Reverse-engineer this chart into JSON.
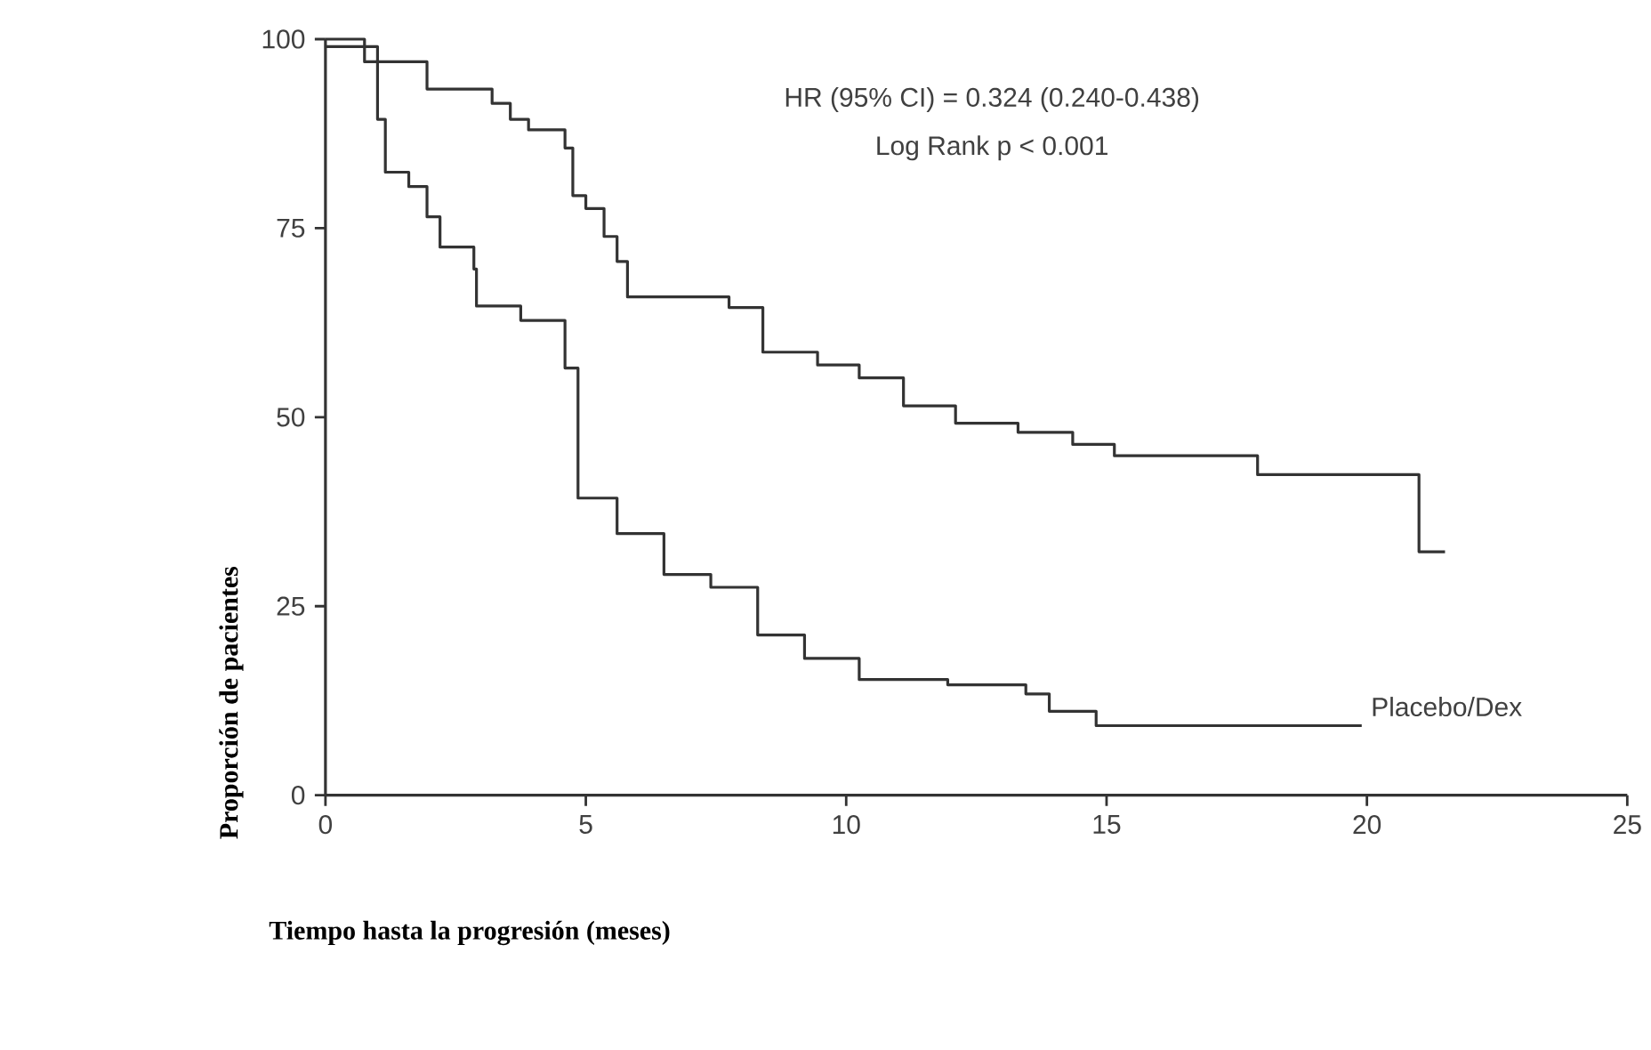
{
  "chart_data": {
    "type": "step",
    "xlabel": "Tiempo hasta la progresión (meses)",
    "ylabel": "Proporción de pacientes",
    "annotations": [
      "HR (95% CI) = 0.324 (0.240-0.438)",
      "Log Rank p < 0.001"
    ],
    "xlim": [
      0,
      25
    ],
    "ylim": [
      0,
      100
    ],
    "xticks": [
      0,
      5,
      10,
      15,
      20,
      25
    ],
    "yticks": [
      0,
      25,
      50,
      75,
      100
    ],
    "marker": "none",
    "line_style": "solid",
    "series": [
      {
        "color": "#333333",
        "x": [
          0,
          0.75,
          1.95,
          3.2,
          3.55,
          3.9,
          4.6,
          4.75,
          5.0,
          5.35,
          5.6,
          5.8,
          7.75,
          8.4,
          9.45,
          10.25,
          11.1,
          12.1,
          13.3,
          14.35,
          15.15,
          17.9,
          21.0,
          21.5
        ],
        "values": [
          100,
          97,
          93.4,
          91.5,
          89.4,
          88,
          85.6,
          79.3,
          77.6,
          73.9,
          70.6,
          65.9,
          64.5,
          58.6,
          56.9,
          55.2,
          51.5,
          49.2,
          48,
          46.4,
          44.9,
          42.4,
          32.2,
          32.2
        ]
      },
      {
        "name": "Placebo/Dex",
        "color": "#333333",
        "x": [
          0,
          1.0,
          1.15,
          1.6,
          1.95,
          2.2,
          2.85,
          2.9,
          3.75,
          4.6,
          4.85,
          5.6,
          6.5,
          7.4,
          8.3,
          9.2,
          10.25,
          11.95,
          13.45,
          13.9,
          14.8,
          19.9
        ],
        "values": [
          99,
          89.4,
          82.4,
          80.5,
          76.5,
          72.5,
          69.6,
          64.7,
          62.8,
          56.5,
          39.3,
          34.6,
          29.2,
          27.5,
          21.2,
          18.1,
          15.3,
          14.6,
          13.4,
          11.1,
          9.2,
          9.2
        ]
      }
    ]
  }
}
